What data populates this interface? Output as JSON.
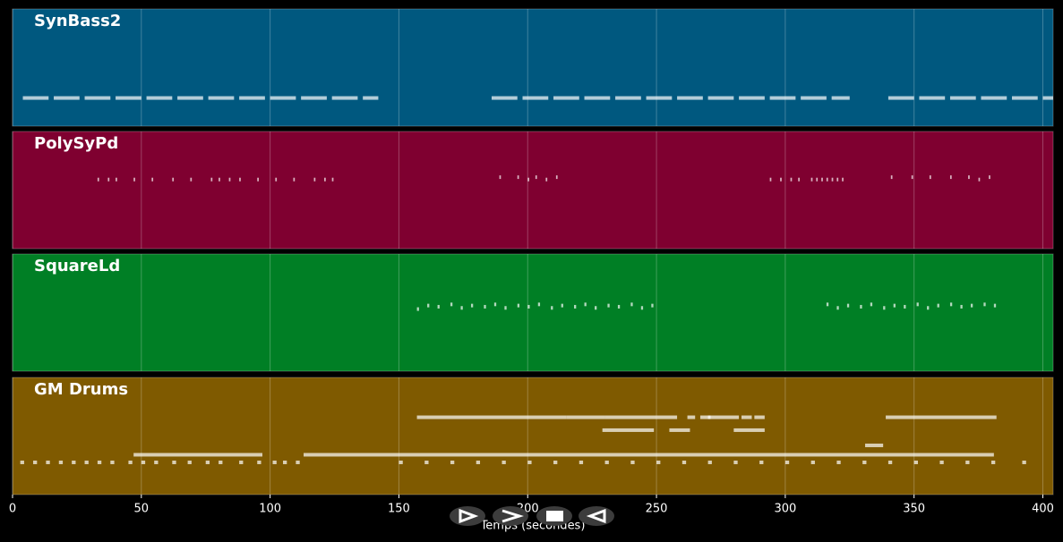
{
  "chart_data": {
    "type": "piano-roll",
    "xlabel": "Temps (secondes)",
    "xlim": [
      0,
      404
    ],
    "xticks": [
      0,
      50,
      100,
      150,
      200,
      250,
      300,
      350,
      400
    ],
    "grid": true,
    "tracks": [
      {
        "name": "SynBass2",
        "color": "#00587f",
        "ylim": [
          0,
          10
        ],
        "notes": [
          [
            4,
            2.4,
            10
          ],
          [
            16,
            2.4,
            10
          ],
          [
            28,
            2.4,
            10
          ],
          [
            40,
            2.4,
            10
          ],
          [
            52,
            2.4,
            10
          ],
          [
            64,
            2.4,
            10
          ],
          [
            76,
            2.4,
            10
          ],
          [
            88,
            2.4,
            10
          ],
          [
            100,
            2.4,
            10
          ],
          [
            112,
            2.4,
            10
          ],
          [
            124,
            2.4,
            10
          ],
          [
            136,
            2.4,
            6
          ],
          [
            186,
            2.4,
            10
          ],
          [
            198,
            2.4,
            10
          ],
          [
            210,
            2.4,
            10
          ],
          [
            222,
            2.4,
            10
          ],
          [
            234,
            2.4,
            10
          ],
          [
            246,
            2.4,
            10
          ],
          [
            258,
            2.4,
            10
          ],
          [
            270,
            2.4,
            10
          ],
          [
            282,
            2.4,
            10
          ],
          [
            294,
            2.4,
            10
          ],
          [
            306,
            2.4,
            10
          ],
          [
            318,
            2.4,
            7
          ],
          [
            340,
            2.4,
            10
          ],
          [
            352,
            2.4,
            10
          ],
          [
            364,
            2.4,
            10
          ],
          [
            376,
            2.4,
            10
          ],
          [
            388,
            2.4,
            10
          ],
          [
            400,
            2.4,
            4
          ]
        ]
      },
      {
        "name": "PolySyPd",
        "color": "#7f0030",
        "ylim": [
          0,
          10
        ],
        "notes": [
          [
            33,
            5.9,
            0.6
          ],
          [
            37,
            5.9,
            0.6
          ],
          [
            40,
            5.9,
            0.6
          ],
          [
            47,
            5.9,
            0.6
          ],
          [
            54,
            5.9,
            0.6
          ],
          [
            62,
            5.9,
            0.6
          ],
          [
            69,
            5.9,
            0.6
          ],
          [
            77,
            5.9,
            0.6
          ],
          [
            80,
            5.9,
            0.6
          ],
          [
            84,
            5.9,
            0.6
          ],
          [
            88,
            5.9,
            0.6
          ],
          [
            95,
            5.9,
            0.6
          ],
          [
            102,
            5.9,
            0.6
          ],
          [
            109,
            5.9,
            0.6
          ],
          [
            117,
            5.9,
            0.6
          ],
          [
            121,
            5.9,
            0.6
          ],
          [
            124,
            5.9,
            0.6
          ],
          [
            189,
            6.1,
            0.6
          ],
          [
            196,
            6.1,
            0.6
          ],
          [
            200,
            5.9,
            0.6
          ],
          [
            203,
            6.1,
            0.6
          ],
          [
            207,
            5.9,
            0.6
          ],
          [
            211,
            6.1,
            0.6
          ],
          [
            294,
            5.9,
            0.6
          ],
          [
            298,
            5.9,
            0.6
          ],
          [
            302,
            5.9,
            0.6
          ],
          [
            305,
            5.9,
            0.6
          ],
          [
            310,
            5.9,
            0.6
          ],
          [
            312,
            5.9,
            0.6
          ],
          [
            314,
            5.9,
            0.6
          ],
          [
            316,
            5.9,
            0.6
          ],
          [
            318,
            5.9,
            0.6
          ],
          [
            320,
            5.9,
            0.6
          ],
          [
            322,
            5.9,
            0.6
          ],
          [
            341,
            6.1,
            0.6
          ],
          [
            349,
            6.1,
            0.6
          ],
          [
            356,
            6.1,
            0.6
          ],
          [
            364,
            6.1,
            0.6
          ],
          [
            371,
            6.1,
            0.6
          ],
          [
            375,
            5.9,
            0.6
          ],
          [
            379,
            6.1,
            0.6
          ]
        ]
      },
      {
        "name": "SquareLd",
        "color": "#007f25",
        "ylim": [
          0,
          10
        ],
        "notes": [
          [
            157,
            5.3,
            0.8
          ],
          [
            161,
            5.6,
            0.8
          ],
          [
            165,
            5.5,
            0.8
          ],
          [
            170,
            5.7,
            0.8
          ],
          [
            174,
            5.4,
            0.8
          ],
          [
            178,
            5.6,
            0.8
          ],
          [
            183,
            5.5,
            0.8
          ],
          [
            187,
            5.7,
            0.8
          ],
          [
            191,
            5.4,
            0.8
          ],
          [
            196,
            5.6,
            0.8
          ],
          [
            200,
            5.5,
            0.8
          ],
          [
            204,
            5.7,
            0.8
          ],
          [
            209,
            5.4,
            0.8
          ],
          [
            213,
            5.6,
            0.8
          ],
          [
            218,
            5.5,
            0.8
          ],
          [
            222,
            5.7,
            0.8
          ],
          [
            226,
            5.4,
            0.8
          ],
          [
            231,
            5.6,
            0.8
          ],
          [
            235,
            5.5,
            0.8
          ],
          [
            240,
            5.7,
            0.8
          ],
          [
            244,
            5.4,
            0.8
          ],
          [
            248,
            5.6,
            0.8
          ],
          [
            316,
            5.7,
            0.8
          ],
          [
            320,
            5.4,
            0.8
          ],
          [
            324,
            5.6,
            0.8
          ],
          [
            329,
            5.5,
            0.8
          ],
          [
            333,
            5.7,
            0.8
          ],
          [
            338,
            5.4,
            0.8
          ],
          [
            342,
            5.6,
            0.8
          ],
          [
            346,
            5.5,
            0.8
          ],
          [
            351,
            5.7,
            0.8
          ],
          [
            355,
            5.4,
            0.8
          ],
          [
            359,
            5.6,
            0.8
          ],
          [
            364,
            5.7,
            0.8
          ],
          [
            368,
            5.5,
            0.8
          ],
          [
            372,
            5.6,
            0.8
          ],
          [
            377,
            5.7,
            0.8
          ],
          [
            381,
            5.6,
            0.8
          ]
        ]
      },
      {
        "name": "GM Drums",
        "color": "#7f5a00",
        "ylim": [
          0,
          10
        ],
        "notes": [
          [
            157,
            6.6,
            58
          ],
          [
            215,
            6.6,
            15
          ],
          [
            230,
            6.6,
            20
          ],
          [
            250,
            6.6,
            8
          ],
          [
            262,
            6.6,
            3
          ],
          [
            267,
            6.6,
            4
          ],
          [
            270,
            6.6,
            12
          ],
          [
            283,
            6.6,
            4
          ],
          [
            288,
            6.6,
            4
          ],
          [
            339,
            6.6,
            43
          ],
          [
            229,
            5.5,
            20
          ],
          [
            255,
            5.5,
            8
          ],
          [
            280,
            5.5,
            12
          ],
          [
            331,
            4.2,
            7
          ],
          [
            47,
            3.4,
            50
          ],
          [
            113,
            3.4,
            268
          ],
          [
            3,
            2.75,
            1.5
          ],
          [
            8,
            2.75,
            1.5
          ],
          [
            13,
            2.75,
            1.5
          ],
          [
            18,
            2.75,
            1.5
          ],
          [
            23,
            2.75,
            1.5
          ],
          [
            28,
            2.75,
            1.5
          ],
          [
            33,
            2.75,
            1.5
          ],
          [
            38,
            2.75,
            1.5
          ],
          [
            45,
            2.75,
            1.5
          ],
          [
            50,
            2.75,
            1.5
          ],
          [
            55,
            2.75,
            1.5
          ],
          [
            62,
            2.75,
            1.5
          ],
          [
            68,
            2.75,
            1.5
          ],
          [
            75,
            2.75,
            1.5
          ],
          [
            80,
            2.75,
            1.5
          ],
          [
            88,
            2.75,
            1.5
          ],
          [
            95,
            2.75,
            1.5
          ],
          [
            101,
            2.75,
            1.5
          ],
          [
            105,
            2.75,
            1.5
          ],
          [
            110,
            2.75,
            1.5
          ],
          [
            150,
            2.75,
            1.5
          ],
          [
            160,
            2.75,
            1.5
          ],
          [
            170,
            2.75,
            1.5
          ],
          [
            180,
            2.75,
            1.5
          ],
          [
            190,
            2.75,
            1.5
          ],
          [
            200,
            2.75,
            1.5
          ],
          [
            210,
            2.75,
            1.5
          ],
          [
            220,
            2.75,
            1.5
          ],
          [
            230,
            2.75,
            1.5
          ],
          [
            240,
            2.75,
            1.5
          ],
          [
            250,
            2.75,
            1.5
          ],
          [
            260,
            2.75,
            1.5
          ],
          [
            270,
            2.75,
            1.5
          ],
          [
            280,
            2.75,
            1.5
          ],
          [
            290,
            2.75,
            1.5
          ],
          [
            300,
            2.75,
            1.5
          ],
          [
            310,
            2.75,
            1.5
          ],
          [
            320,
            2.75,
            1.5
          ],
          [
            330,
            2.75,
            1.5
          ],
          [
            340,
            2.75,
            1.5
          ],
          [
            350,
            2.75,
            1.5
          ],
          [
            360,
            2.75,
            1.5
          ],
          [
            370,
            2.75,
            1.5
          ],
          [
            380,
            2.75,
            1.5
          ],
          [
            392,
            2.75,
            1.5
          ]
        ]
      }
    ]
  }
}
